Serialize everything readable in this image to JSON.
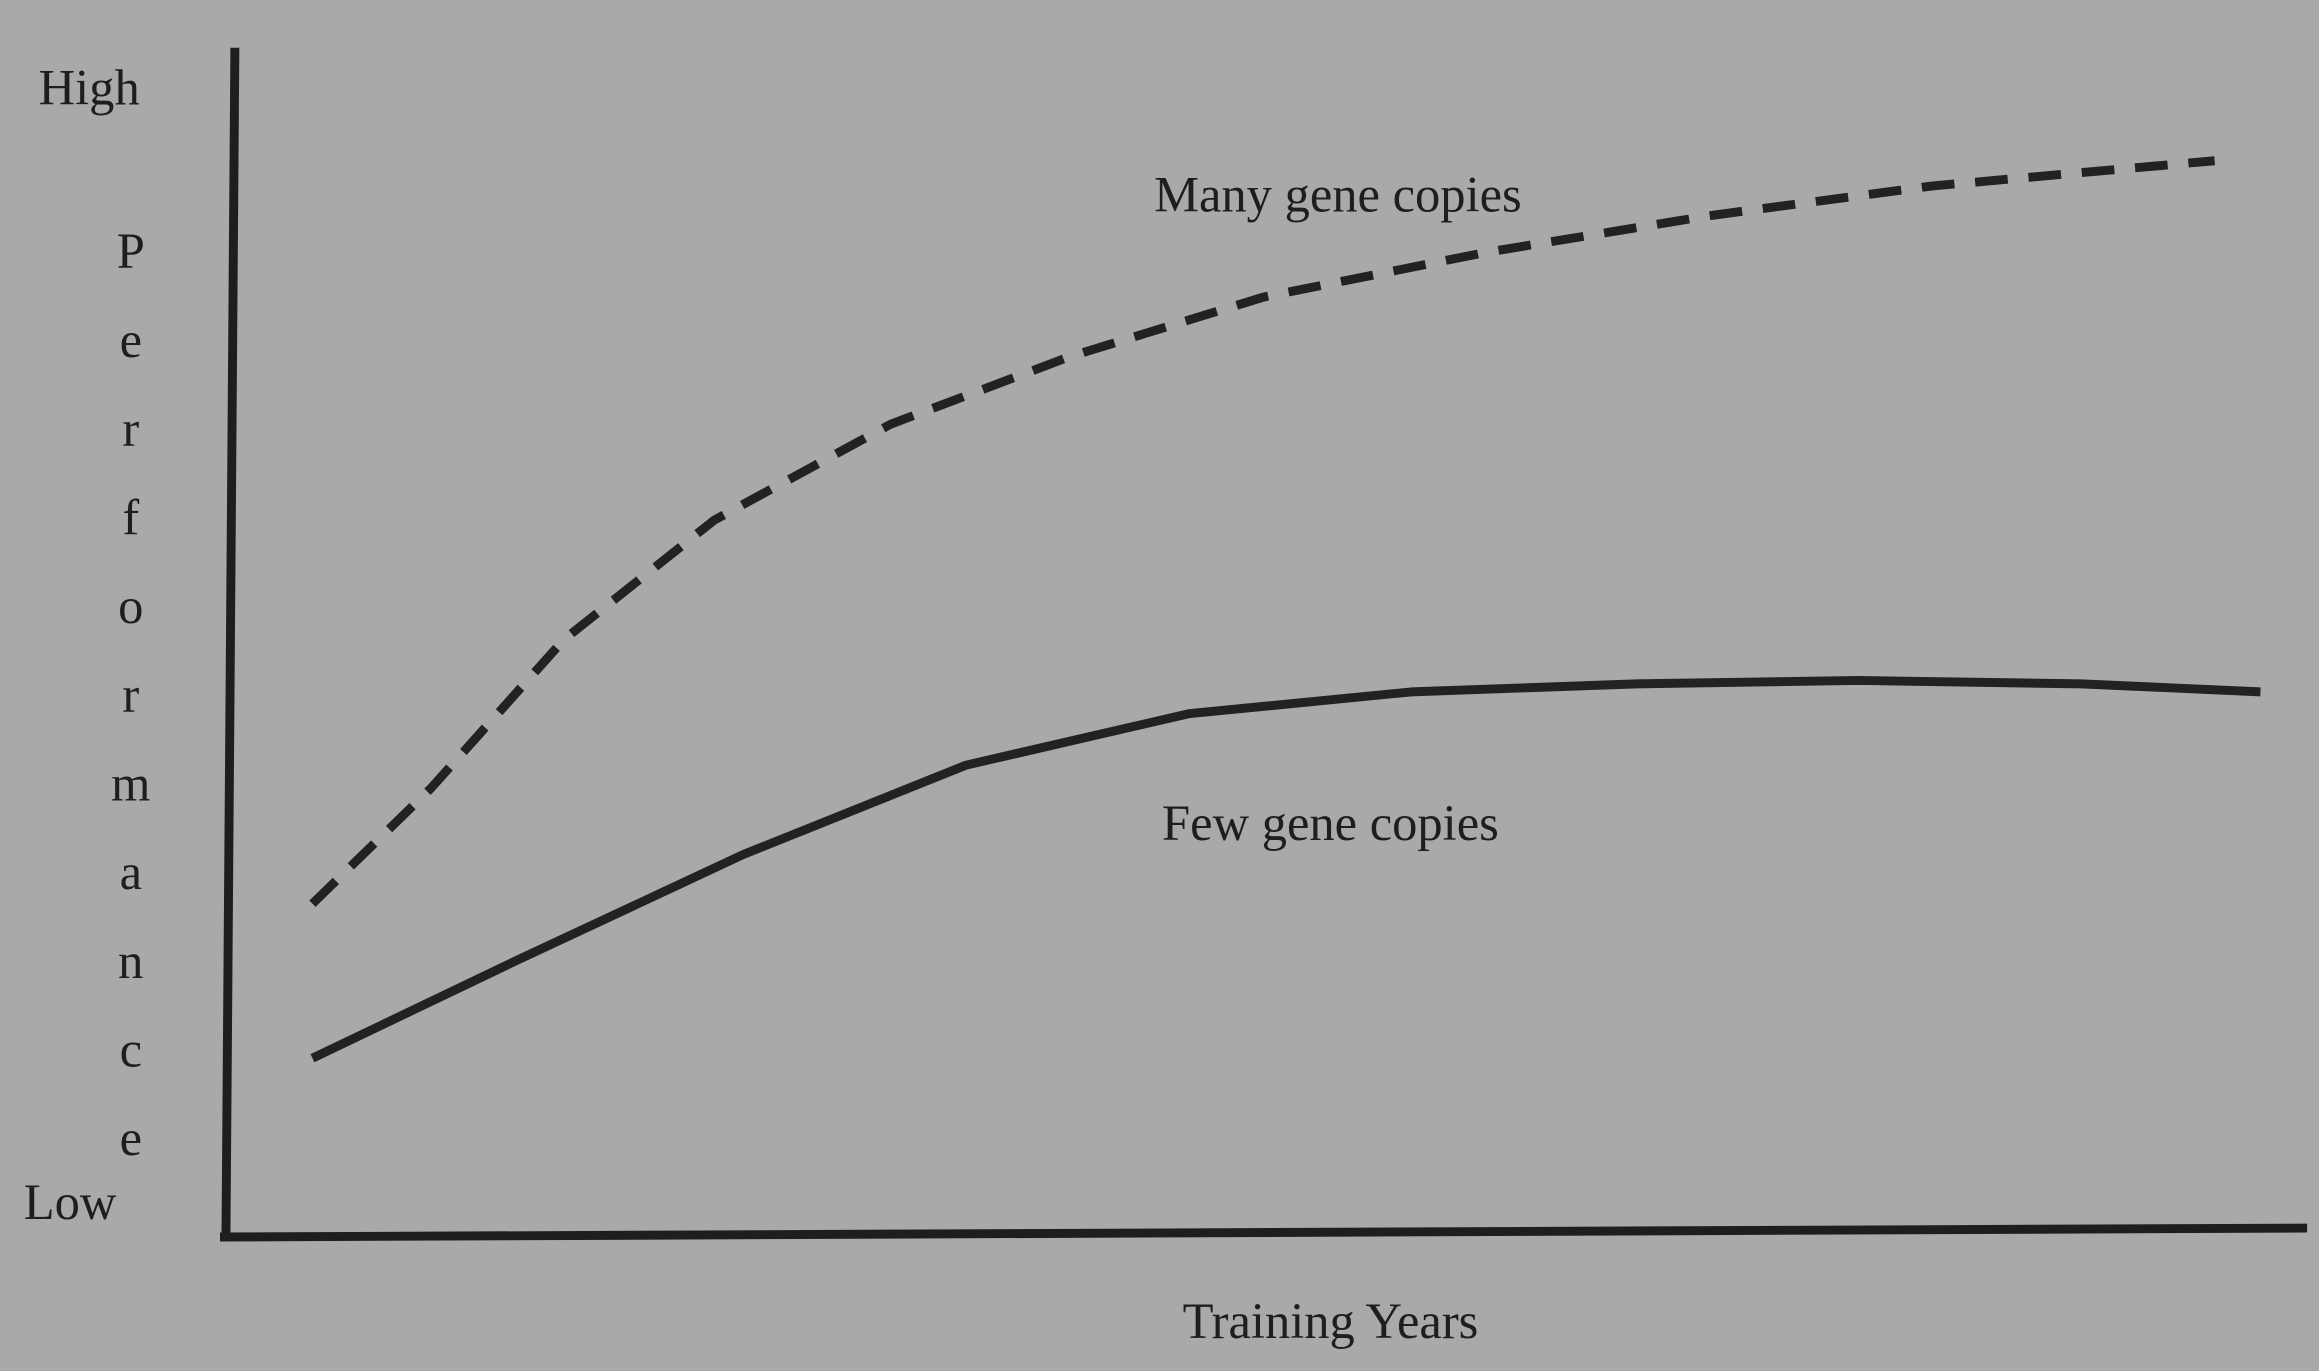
{
  "chart_data": {
    "type": "line",
    "x_label": "Training Years",
    "y_label": "Performance",
    "xlim": [
      0,
      100
    ],
    "ylim": [
      0,
      100
    ],
    "yticks": [
      {
        "value": 0,
        "label": "Low"
      },
      {
        "value": 100,
        "label": "High"
      }
    ],
    "series": [
      {
        "name": "Many gene copies",
        "color": "#222222",
        "dashed": true,
        "x": [
          4.3,
          10,
          16.4,
          23.6,
          32.1,
          40.7,
          50,
          60.7,
          71.4,
          82.1,
          95.7
        ],
        "values": [
          28.6,
          38.7,
          51.7,
          62.1,
          70.5,
          76.4,
          81.6,
          85.5,
          88.7,
          91.3,
          93.5
        ]
      },
      {
        "name": "Few gene copies",
        "color": "#222222",
        "dashed": false,
        "x": [
          4.3,
          14.3,
          25,
          35.7,
          46.4,
          57.1,
          67.9,
          78.6,
          89.3,
          97.9
        ],
        "values": [
          15.1,
          23.8,
          32.9,
          40.7,
          45.2,
          47.1,
          47.8,
          48.1,
          47.8,
          47.1
        ]
      }
    ]
  }
}
